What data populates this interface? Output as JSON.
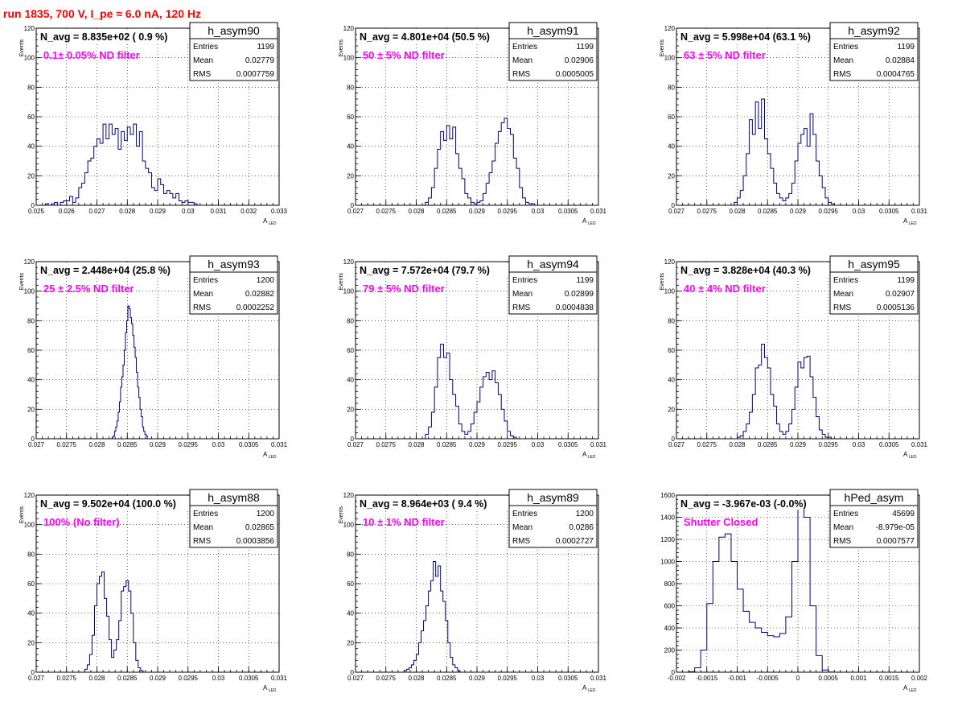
{
  "title": "run 1835,   700 V, I_pe ≈ 6.0 nA, 120 Hz",
  "colors": {
    "title": "#ff0000",
    "histogram": "#000080",
    "annotation": "#ff00ff",
    "grid": "#000000"
  },
  "chart_data": [
    {
      "type": "histogram",
      "name": "h_asym90",
      "stats": {
        "entries_label": "Entries",
        "entries": "1199",
        "mean_label": "Mean",
        "mean": "0.02779",
        "rms_label": "RMS",
        "rms": "0.0007759"
      },
      "navg": "N_avg = 8.835e+02 ( 0.9 %)",
      "note": "0.1± 0.05% ND filter",
      "xlabel": "A",
      "xlabel_sub": "LED",
      "ylabel": "Events",
      "xlim": [
        0.025,
        0.033
      ],
      "ylim": [
        0,
        120
      ],
      "xticks": [
        0.025,
        0.026,
        0.027,
        0.028,
        0.029,
        0.03,
        0.031,
        0.032,
        0.033
      ],
      "xtick_labels": [
        "0.025",
        "0.026",
        "0.027",
        "0.028",
        "0.029",
        "0.03",
        "0.031",
        "0.032",
        "0.033"
      ],
      "yticks": [
        0,
        20,
        40,
        60,
        80,
        100,
        120
      ],
      "ytick_labels": [
        "0",
        "20",
        "40",
        "60",
        "80",
        "100",
        "120"
      ],
      "bin_start": 0.0253,
      "bin_width": 0.0001,
      "values": [
        1,
        0,
        1,
        2,
        0,
        2,
        3,
        3,
        6,
        2,
        5,
        12,
        15,
        22,
        30,
        32,
        40,
        45,
        42,
        55,
        45,
        55,
        48,
        52,
        38,
        50,
        44,
        53,
        48,
        55,
        40,
        50,
        30,
        25,
        22,
        12,
        10,
        18,
        14,
        8,
        10,
        8,
        5,
        8,
        3,
        2,
        3,
        2,
        2,
        1
      ]
    },
    {
      "type": "histogram",
      "name": "h_asym91",
      "stats": {
        "entries_label": "Entries",
        "entries": "1199",
        "mean_label": "Mean",
        "mean": "0.02906",
        "rms_label": "RMS",
        "rms": "0.0005005"
      },
      "navg": "N_avg = 4.801e+04 (50.5 %)",
      "note": "50 ± 5% ND filter",
      "xlabel": "A",
      "xlabel_sub": "LED",
      "ylabel": "Events",
      "xlim": [
        0.027,
        0.031
      ],
      "ylim": [
        0,
        120
      ],
      "xticks": [
        0.027,
        0.0275,
        0.028,
        0.0285,
        0.029,
        0.0295,
        0.03,
        0.0305,
        0.031
      ],
      "xtick_labels": [
        "0.027",
        "0.0275",
        "0.028",
        "0.0285",
        "0.029",
        "0.0295",
        "0.03",
        "0.0305",
        "0.031"
      ],
      "yticks": [
        0,
        20,
        40,
        60,
        80,
        100,
        120
      ],
      "ytick_labels": [
        "0",
        "20",
        "40",
        "60",
        "80",
        "100",
        "120"
      ],
      "bin_start": 0.02815,
      "bin_width": 5e-05,
      "values": [
        2,
        5,
        12,
        25,
        38,
        50,
        44,
        54,
        45,
        53,
        35,
        25,
        18,
        8,
        5,
        2,
        1,
        2,
        3,
        8,
        15,
        22,
        30,
        42,
        50,
        56,
        59,
        52,
        48,
        32,
        25,
        12,
        5,
        2,
        1,
        1
      ]
    },
    {
      "type": "histogram",
      "name": "h_asym92",
      "stats": {
        "entries_label": "Entries",
        "entries": "1199",
        "mean_label": "Mean",
        "mean": "0.02884",
        "rms_label": "RMS",
        "rms": "0.0004765"
      },
      "navg": "N_avg = 5.998e+04 (63.1 %)",
      "note": "63 ± 5% ND filter",
      "xlabel": "A",
      "xlabel_sub": "LED",
      "ylabel": "Events",
      "xlim": [
        0.027,
        0.031
      ],
      "ylim": [
        0,
        120
      ],
      "xticks": [
        0.027,
        0.0275,
        0.028,
        0.0285,
        0.029,
        0.0295,
        0.03,
        0.0305,
        0.031
      ],
      "xtick_labels": [
        "0.027",
        "0.0275",
        "0.028",
        "0.0285",
        "0.029",
        "0.0295",
        "0.03",
        "0.0305",
        "0.031"
      ],
      "yticks": [
        0,
        20,
        40,
        60,
        80,
        100,
        120
      ],
      "ytick_labels": [
        "0",
        "20",
        "40",
        "60",
        "80",
        "100",
        "120"
      ],
      "bin_start": 0.02795,
      "bin_width": 5e-05,
      "values": [
        2,
        5,
        10,
        20,
        35,
        58,
        48,
        70,
        52,
        72,
        45,
        35,
        25,
        15,
        8,
        5,
        3,
        5,
        8,
        15,
        30,
        42,
        48,
        52,
        40,
        62,
        48,
        30,
        20,
        12,
        5,
        2,
        1
      ]
    },
    {
      "type": "histogram",
      "name": "h_asym93",
      "stats": {
        "entries_label": "Entries",
        "entries": "1200",
        "mean_label": "Mean",
        "mean": "0.02882",
        "rms_label": "RMS",
        "rms": "0.0002252"
      },
      "navg": "N_avg = 2.448e+04 (25.8 %)",
      "note": "25 ± 2.5% ND filter",
      "xlabel": "A",
      "xlabel_sub": "LED",
      "ylabel": "Events",
      "xlim": [
        0.027,
        0.031
      ],
      "ylim": [
        0,
        120
      ],
      "xticks": [
        0.027,
        0.0275,
        0.028,
        0.0285,
        0.029,
        0.0295,
        0.03,
        0.0305,
        0.031
      ],
      "xtick_labels": [
        "0.027",
        "0.0275",
        "0.028",
        "0.0285",
        "0.029",
        "0.0295",
        "0.03",
        "0.0305",
        "0.031"
      ],
      "yticks": [
        0,
        20,
        40,
        60,
        80,
        100,
        120
      ],
      "ytick_labels": [
        "0",
        "20",
        "40",
        "60",
        "80",
        "100",
        "120"
      ],
      "bin_start": 0.02825,
      "bin_width": 2e-05,
      "values": [
        1,
        2,
        5,
        8,
        12,
        18,
        25,
        35,
        42,
        50,
        60,
        72,
        80,
        90,
        88,
        82,
        78,
        70,
        62,
        55,
        45,
        35,
        28,
        20,
        15,
        8,
        5,
        3,
        2
      ]
    },
    {
      "type": "histogram",
      "name": "h_asym94",
      "stats": {
        "entries_label": "Entries",
        "entries": "1199",
        "mean_label": "Mean",
        "mean": "0.02899",
        "rms_label": "RMS",
        "rms": "0.0004838"
      },
      "navg": "N_avg = 7.572e+04 (79.7 %)",
      "note": "79 ± 5% ND filter",
      "xlabel": "A",
      "xlabel_sub": "LED",
      "ylabel": "Events",
      "xlim": [
        0.027,
        0.031
      ],
      "ylim": [
        0,
        120
      ],
      "xticks": [
        0.027,
        0.0275,
        0.028,
        0.0285,
        0.029,
        0.0295,
        0.03,
        0.0305,
        0.031
      ],
      "xtick_labels": [
        "0.027",
        "0.0275",
        "0.028",
        "0.0285",
        "0.029",
        "0.0295",
        "0.03",
        "0.0305",
        "0.031"
      ],
      "yticks": [
        0,
        20,
        40,
        60,
        80,
        100,
        120
      ],
      "ytick_labels": [
        "0",
        "20",
        "40",
        "60",
        "80",
        "100",
        "120"
      ],
      "bin_start": 0.02815,
      "bin_width": 5e-05,
      "values": [
        3,
        8,
        18,
        35,
        55,
        64,
        55,
        58,
        40,
        30,
        22,
        10,
        5,
        3,
        5,
        10,
        18,
        25,
        35,
        42,
        45,
        40,
        46,
        38,
        30,
        20,
        12,
        5,
        2,
        1
      ]
    },
    {
      "type": "histogram",
      "name": "h_asym95",
      "stats": {
        "entries_label": "Entries",
        "entries": "1199",
        "mean_label": "Mean",
        "mean": "0.02907",
        "rms_label": "RMS",
        "rms": "0.0005136"
      },
      "navg": "N_avg = 3.828e+04 (40.3 %)",
      "note": "40 ± 4% ND filter",
      "xlabel": "A",
      "xlabel_sub": "LED",
      "ylabel": "Events",
      "xlim": [
        0.027,
        0.031
      ],
      "ylim": [
        0,
        120
      ],
      "xticks": [
        0.027,
        0.0275,
        0.028,
        0.0285,
        0.029,
        0.0295,
        0.03,
        0.0305,
        0.031
      ],
      "xtick_labels": [
        "0.027",
        "0.0275",
        "0.028",
        "0.0285",
        "0.029",
        "0.0295",
        "0.03",
        "0.0305",
        "0.031"
      ],
      "yticks": [
        0,
        20,
        40,
        60,
        80,
        100,
        120
      ],
      "ytick_labels": [
        "0",
        "20",
        "40",
        "60",
        "80",
        "100",
        "120"
      ],
      "bin_start": 0.028,
      "bin_width": 5e-05,
      "values": [
        1,
        2,
        5,
        10,
        18,
        30,
        48,
        50,
        64,
        55,
        48,
        30,
        22,
        10,
        5,
        3,
        5,
        10,
        20,
        35,
        52,
        48,
        55,
        56,
        42,
        28,
        15,
        6,
        3,
        1,
        1
      ]
    },
    {
      "type": "histogram",
      "name": "h_asym88",
      "stats": {
        "entries_label": "Entries",
        "entries": "1200",
        "mean_label": "Mean",
        "mean": "0.02865",
        "rms_label": "RMS",
        "rms": "0.0003856"
      },
      "navg": "N_avg = 9.502e+04 (100.0 %)",
      "note": "100% (No filter)",
      "xlabel": "A",
      "xlabel_sub": "LED",
      "ylabel": "Events",
      "xlim": [
        0.027,
        0.031
      ],
      "ylim": [
        0,
        120
      ],
      "xticks": [
        0.027,
        0.0275,
        0.028,
        0.0285,
        0.029,
        0.0295,
        0.03,
        0.0305,
        0.031
      ],
      "xtick_labels": [
        "0.027",
        "0.0275",
        "0.028",
        "0.0285",
        "0.029",
        "0.0295",
        "0.03",
        "0.0305",
        "0.031"
      ],
      "yticks": [
        0,
        20,
        40,
        60,
        80,
        100,
        120
      ],
      "ytick_labels": [
        "0",
        "20",
        "40",
        "60",
        "80",
        "100",
        "120"
      ],
      "bin_start": 0.0278,
      "bin_width": 4e-05,
      "values": [
        2,
        5,
        12,
        25,
        45,
        60,
        65,
        68,
        50,
        38,
        22,
        10,
        15,
        22,
        35,
        55,
        58,
        62,
        55,
        40,
        20,
        8,
        3,
        1
      ]
    },
    {
      "type": "histogram",
      "name": "h_asym89",
      "stats": {
        "entries_label": "Entries",
        "entries": "1200",
        "mean_label": "Mean",
        "mean": "0.0286",
        "rms_label": "RMS",
        "rms": "0.0002727"
      },
      "navg": "N_avg = 8.964e+03 ( 9.4 %)",
      "note": "10 ± 1% ND filter",
      "xlabel": "A",
      "xlabel_sub": "LED",
      "ylabel": "Events",
      "xlim": [
        0.027,
        0.031
      ],
      "ylim": [
        0,
        120
      ],
      "xticks": [
        0.027,
        0.0275,
        0.028,
        0.0285,
        0.029,
        0.0295,
        0.03,
        0.0305,
        0.031
      ],
      "xtick_labels": [
        "0.027",
        "0.0275",
        "0.028",
        "0.0285",
        "0.029",
        "0.0295",
        "0.03",
        "0.0305",
        "0.031"
      ],
      "yticks": [
        0,
        20,
        40,
        60,
        80,
        100,
        120
      ],
      "ytick_labels": [
        "0",
        "20",
        "40",
        "60",
        "80",
        "100",
        "120"
      ],
      "bin_start": 0.0278,
      "bin_width": 4e-05,
      "values": [
        1,
        2,
        3,
        5,
        8,
        12,
        20,
        28,
        35,
        45,
        55,
        62,
        75,
        65,
        72,
        55,
        48,
        35,
        20,
        10,
        5,
        3,
        1
      ]
    },
    {
      "type": "histogram",
      "name": "hPed_asym",
      "stats": {
        "entries_label": "Entries",
        "entries": "45699",
        "mean_label": "Mean",
        "mean": "-8.979e-05",
        "rms_label": "RMS",
        "rms": "0.0007577"
      },
      "navg": "N_avg = -3.967e-03 (-0.0%)",
      "note": "Shutter Closed",
      "xlabel": "A",
      "xlabel_sub": "LED",
      "ylabel": "",
      "xlim": [
        -0.002,
        0.002
      ],
      "ylim": [
        0,
        1600
      ],
      "xticks": [
        -0.002,
        -0.0015,
        -0.001,
        -0.0005,
        0,
        0.0005,
        0.001,
        0.0015,
        0.002
      ],
      "xtick_labels": [
        "-0.002",
        "-0.0015",
        "-0.001",
        "-0.0005",
        "0",
        "0.0005",
        "0.001",
        "0.0015",
        "0.002"
      ],
      "yticks": [
        0,
        200,
        400,
        600,
        800,
        1000,
        1200,
        1400,
        1600
      ],
      "ytick_labels": [
        "0",
        "200",
        "400",
        "600",
        "800",
        "1000",
        "1200",
        "1400",
        "1600"
      ],
      "bin_start": -0.0018,
      "bin_width": 0.0001,
      "values": [
        5,
        40,
        200,
        620,
        1000,
        1220,
        1250,
        1000,
        750,
        550,
        450,
        400,
        360,
        330,
        320,
        350,
        500,
        1000,
        1550,
        1400,
        600,
        150,
        20,
        2
      ]
    }
  ]
}
